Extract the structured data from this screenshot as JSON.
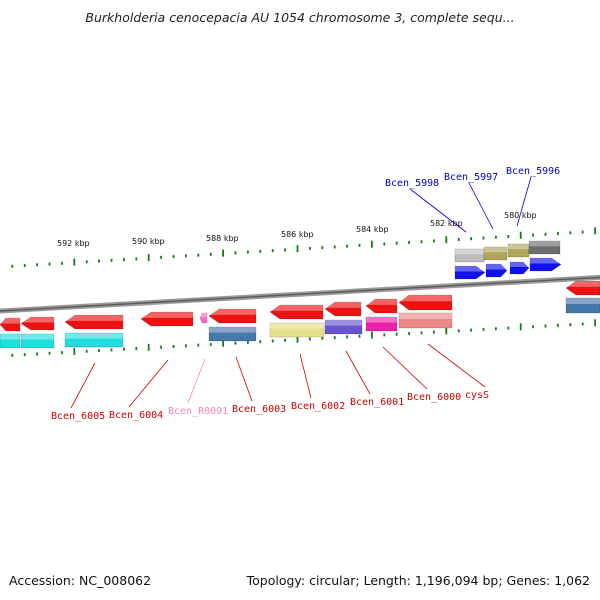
{
  "header": {
    "title": "Burkholderia cenocepacia AU 1054 chromosome 3, complete sequ..."
  },
  "footer": {
    "accession": "Accession: NC_008062",
    "summary": "Topology: circular; Length: 1,196,094 bp; Genes: 1,062"
  },
  "scale": {
    "ticks": [
      "592 kbp",
      "590 kbp",
      "588 kbp",
      "586 kbp",
      "584 kbp",
      "582 kbp",
      "580 kbp"
    ]
  },
  "genes_top": {
    "labels": [
      "Bcen_5998",
      "Bcen_5997",
      "Bcen_5996"
    ],
    "color": "#0000cc"
  },
  "genes_bottom": {
    "labels": [
      "Bcen_6005",
      "Bcen_6004",
      "Bcen_R0091",
      "Bcen_6003",
      "Bcen_6002",
      "Bcen_6001",
      "Bcen_6000",
      "cysS"
    ],
    "colors": [
      "#cc0000",
      "#cc0000",
      "#ee88bb",
      "#cc0000",
      "#cc0000",
      "#cc0000",
      "#cc0000",
      "#cc0000"
    ]
  },
  "colors": {
    "forward_gene": "#1111ee",
    "reverse_gene": "#ee1111",
    "tick": "#1a7a1a",
    "backbone": "#888888"
  }
}
